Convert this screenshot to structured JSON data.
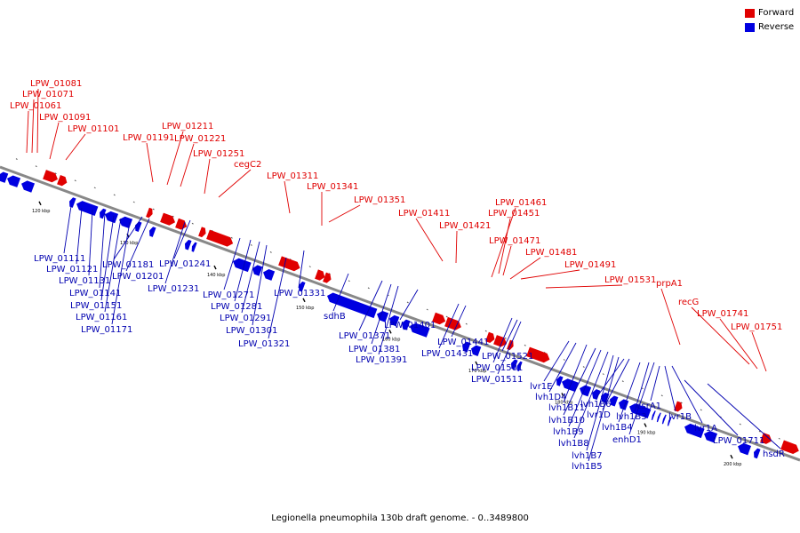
{
  "legend": {
    "forward": "Forward",
    "reverse": "Reverse"
  },
  "caption": "Legionella pneumophila 130b draft genome. - 0..3489800",
  "colors": {
    "forward": "#e00000",
    "reverse": "#0000e0",
    "backbone": "#888888",
    "forward_label": "#e00000",
    "reverse_label": "#0000b0"
  },
  "scale_labels": [
    "120 kbp",
    "130 kbp",
    "140 kbp",
    "150 kbp",
    "160 kbp",
    "170 kbp",
    "180 kbp",
    "190 kbp",
    "200 kbp"
  ],
  "forward_genes": [
    "LPW_01081",
    "LPW_01071",
    "LPW_01061",
    "LPW_01091",
    "LPW_01101",
    "LPW_01191",
    "LPW_01211",
    "LPW_01221",
    "LPW_01251",
    "cegC2",
    "LPW_01311",
    "LPW_01341",
    "LPW_01351",
    "LPW_01411",
    "LPW_01421",
    "LPW_01461",
    "LPW_01451",
    "LPW_01471",
    "LPW_01481",
    "LPW_01491",
    "LPW_01531",
    "prpA1",
    "recG",
    "LPW_01741",
    "LPW_01751"
  ],
  "reverse_genes": [
    "LPW_01111",
    "LPW_01121",
    "LPW_01131",
    "LPW_01141",
    "LPW_01151",
    "LPW_01161",
    "LPW_01171",
    "LPW_01181",
    "LPW_01201",
    "LPW_01241",
    "LPW_01231",
    "LPW_01271",
    "LPW_01281",
    "LPW_01291",
    "LPW_01301",
    "LPW_01321",
    "LPW_01331",
    "sdhB",
    "LPW_01371",
    "LPW_01381",
    "LPW_01391",
    "LPW_01401",
    "LPW_01441",
    "LPW_01431",
    "LPW_01521",
    "LPW_01501",
    "LPW_01511",
    "lvr1E",
    "lvh1D4",
    "lvh1B11",
    "lvh1B10",
    "lvh1B9",
    "lvh1B8",
    "lvh1B7",
    "lvh1B5",
    "lvh1B6",
    "lvr1D",
    "lvh1B3",
    "lvh1B4",
    "enhD1",
    "csrA1",
    "lvr1B",
    "lvr1A",
    "LPW_01711",
    "hsdR"
  ]
}
